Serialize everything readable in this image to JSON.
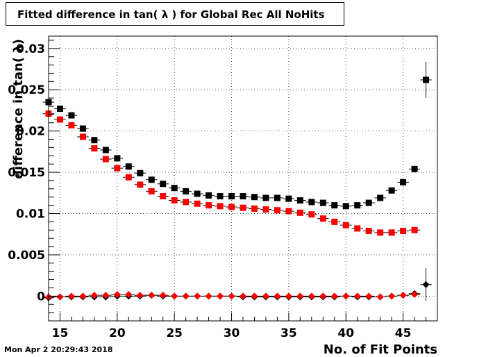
{
  "title": "Fitted difference in tan( λ ) for Global Rec All NoHits",
  "timestamp": "Mon Apr  2 20:29:43 2018",
  "colors": {
    "series_black": "#000000",
    "series_red": "#ff0000",
    "grid": "#000000"
  },
  "chart_data": {
    "type": "scatter",
    "title": "Fitted difference in tan( λ ) for Global Rec All NoHits",
    "xlabel": "No. of Fit Points",
    "ylabel": "difference in tan( λ)",
    "xlim": [
      14,
      48
    ],
    "ylim": [
      -0.003,
      0.0315
    ],
    "grid": true,
    "x_ticks": [
      15,
      20,
      25,
      30,
      35,
      40,
      45
    ],
    "x_tick_labels": [
      "15",
      "20",
      "25",
      "30",
      "35",
      "40",
      "45"
    ],
    "y_ticks": [
      0,
      0.005,
      0.01,
      0.015,
      0.02,
      0.025,
      0.03
    ],
    "y_tick_labels": [
      "0",
      "0.005",
      "0.01",
      "0.015",
      "0.02",
      "0.025",
      "0.03"
    ],
    "series": [
      {
        "marker": "square",
        "color": "#000000",
        "x": [
          14,
          15,
          16,
          17,
          18,
          19,
          20,
          21,
          22,
          23,
          24,
          25,
          26,
          27,
          28,
          29,
          30,
          31,
          32,
          33,
          34,
          35,
          36,
          37,
          38,
          39,
          40,
          41,
          42,
          43,
          44,
          45,
          46,
          47
        ],
        "y": [
          0.0235,
          0.0227,
          0.0219,
          0.0203,
          0.0189,
          0.0177,
          0.0167,
          0.0157,
          0.0149,
          0.0141,
          0.0136,
          0.0131,
          0.0127,
          0.0124,
          0.0122,
          0.0121,
          0.0121,
          0.0121,
          0.012,
          0.0119,
          0.0119,
          0.0118,
          0.0116,
          0.0114,
          0.0113,
          0.011,
          0.0109,
          0.011,
          0.0113,
          0.0119,
          0.0128,
          0.0138,
          0.0154,
          0.0262
        ],
        "yerr": [
          0,
          0,
          0,
          0,
          0,
          0,
          0,
          0,
          0,
          0,
          0,
          0,
          0,
          0,
          0,
          0,
          0,
          0,
          0,
          0,
          0,
          0,
          0,
          0,
          0,
          0,
          0,
          0,
          0,
          0,
          0,
          0,
          0,
          0.0022
        ]
      },
      {
        "marker": "square",
        "color": "#ff0000",
        "x": [
          14,
          15,
          16,
          17,
          18,
          19,
          20,
          21,
          22,
          23,
          24,
          25,
          26,
          27,
          28,
          29,
          30,
          31,
          32,
          33,
          34,
          35,
          36,
          37,
          38,
          39,
          40,
          41,
          42,
          43,
          44,
          45,
          46
        ],
        "y": [
          0.0221,
          0.0214,
          0.0207,
          0.0193,
          0.0179,
          0.0166,
          0.0155,
          0.0144,
          0.0135,
          0.0127,
          0.0121,
          0.0116,
          0.0114,
          0.0112,
          0.011,
          0.0109,
          0.0108,
          0.0107,
          0.0106,
          0.0105,
          0.0104,
          0.0103,
          0.0101,
          0.0099,
          0.0094,
          0.009,
          0.0086,
          0.0082,
          0.0079,
          0.0077,
          0.0077,
          0.0079,
          0.008
        ]
      },
      {
        "marker": "diamond",
        "color": "#000000",
        "x": [
          14,
          15,
          16,
          17,
          18,
          19,
          20,
          21,
          22,
          23,
          24,
          25,
          26,
          27,
          28,
          29,
          30,
          31,
          32,
          33,
          34,
          35,
          36,
          37,
          38,
          39,
          40,
          41,
          42,
          43,
          44,
          45,
          46,
          47
        ],
        "y": [
          -0.0002,
          -0.0001,
          -0.0001,
          -0.0001,
          -0.0001,
          -0.0001,
          0.0,
          0.0,
          0.0,
          0.0001,
          0.0,
          0.0,
          0.0,
          0.0,
          0.0,
          0.0,
          0.0,
          -0.0001,
          -0.0001,
          -0.0001,
          -0.0001,
          -0.0001,
          -0.0001,
          -0.0001,
          -0.0001,
          -0.0001,
          0.0,
          -0.0001,
          -0.0001,
          -0.0001,
          0.0,
          0.0001,
          0.0003,
          0.0014
        ],
        "yerr": [
          0,
          0,
          0,
          0,
          0,
          0,
          0,
          0,
          0,
          0,
          0,
          0,
          0,
          0,
          0,
          0,
          0,
          0,
          0,
          0,
          0,
          0,
          0,
          0,
          0,
          0,
          0,
          0,
          0,
          0,
          0,
          0,
          0,
          0.002
        ]
      },
      {
        "marker": "diamond",
        "color": "#ff0000",
        "x": [
          14,
          15,
          16,
          17,
          18,
          19,
          20,
          21,
          22,
          23,
          24,
          25,
          26,
          27,
          28,
          29,
          30,
          31,
          32,
          33,
          34,
          35,
          36,
          37,
          38,
          39,
          40,
          41,
          42,
          43,
          44,
          45,
          46
        ],
        "y": [
          -0.0001,
          -0.0001,
          0.0,
          0.0,
          0.0001,
          0.0001,
          0.0002,
          0.0002,
          0.0001,
          0.0001,
          0.0001,
          0.0,
          0.0,
          0.0,
          0.0,
          0.0,
          0.0,
          0.0,
          0.0,
          0.0,
          0.0,
          0.0,
          0.0,
          0.0,
          0.0,
          0.0,
          0.0,
          0.0,
          0.0,
          -0.0001,
          0.0,
          0.0001,
          0.0002
        ]
      }
    ]
  }
}
